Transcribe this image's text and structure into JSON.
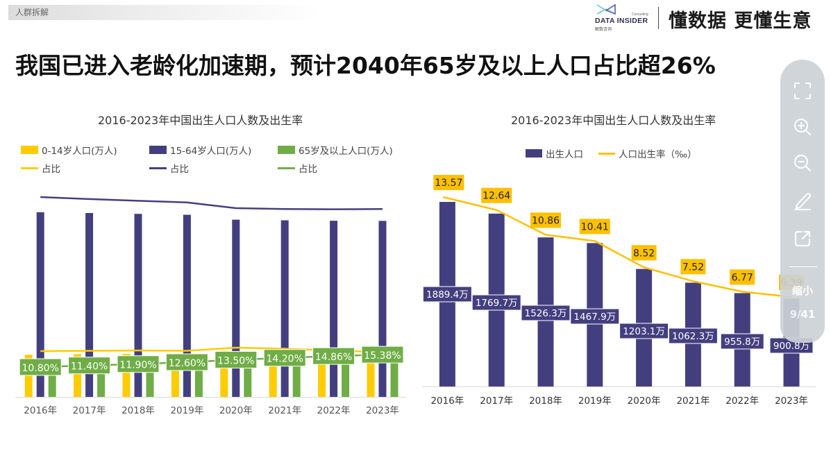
{
  "section_tag": "人群拆解",
  "brand": {
    "logo_name": "DATA INSIDER",
    "logo_sub": "解数咨询",
    "logo_consulting": "Consulting",
    "slogan": "懂数据 更懂生意"
  },
  "page_title": "我国已进入老龄化加速期，预计2040年65岁及以上人口占比超26%",
  "colors": {
    "yellow": "#FFCC00",
    "purple": "#433F7F",
    "green": "#70AD47",
    "label_yellow_bg": "#FFC000"
  },
  "toolbar": {
    "items": [
      {
        "name": "fullscreen",
        "icon": "fullscreen-icon"
      },
      {
        "name": "zoom-in",
        "icon": "zoom-in-icon"
      },
      {
        "name": "zoom-out",
        "icon": "zoom-out-icon"
      },
      {
        "name": "annotate",
        "icon": "pencil-icon"
      },
      {
        "name": "share",
        "icon": "share-icon"
      }
    ],
    "shrink_label": "缩小",
    "page_indicator": "9/41"
  },
  "chart_data": [
    {
      "type": "bar",
      "title": "2016-2023年中国出生人口人数及出生率",
      "categories": [
        "2016年",
        "2017年",
        "2018年",
        "2019年",
        "2020年",
        "2021年",
        "2022年",
        "2023年"
      ],
      "legend": [
        {
          "label": "0-14岁人口(万人)",
          "kind": "bar",
          "color": "#FFCC00"
        },
        {
          "label": "15-64岁人口(万人)",
          "kind": "bar",
          "color": "#433F7F"
        },
        {
          "label": "65岁及以上人口(万人)",
          "kind": "bar",
          "color": "#70AD47"
        },
        {
          "label": "占比",
          "kind": "line",
          "color": "#FFCC00"
        },
        {
          "label": "占比",
          "kind": "line",
          "color": "#433F7F"
        },
        {
          "label": "占比",
          "kind": "line",
          "color": "#70AD47"
        }
      ],
      "series": [
        {
          "name": "0-14岁人口(万人)",
          "kind": "bar",
          "values": [
            23008,
            23348,
            23523,
            23492,
            25277,
            24678,
            23908,
            23063
          ]
        },
        {
          "name": "15-64岁人口(万人)",
          "kind": "bar",
          "values": [
            100943,
            100528,
            100065,
            99552,
            96871,
            96526,
            96289,
            96228
          ]
        },
        {
          "name": "65岁及以上人口(万人)",
          "kind": "bar",
          "values": [
            15003,
            15831,
            16658,
            17603,
            19064,
            20056,
            20978,
            21676
          ]
        },
        {
          "name": "0-14岁占比",
          "kind": "line",
          "values": [
            16.7,
            16.8,
            16.9,
            16.8,
            17.9,
            17.5,
            16.9,
            16.3
          ]
        },
        {
          "name": "15-64岁占比",
          "kind": "line",
          "values": [
            72.5,
            71.8,
            71.2,
            70.6,
            68.6,
            68.3,
            68.2,
            68.3
          ]
        },
        {
          "name": "65岁及以上占比",
          "kind": "line",
          "values": [
            10.8,
            11.4,
            11.9,
            12.6,
            13.5,
            14.2,
            14.86,
            15.38
          ],
          "data_labels": [
            "10.80%",
            "11.40%",
            "11.90%",
            "12.60%",
            "13.50%",
            "14.20%",
            "14.86%",
            "15.38%"
          ]
        }
      ],
      "xlabel": "",
      "ylabel": "",
      "grid": false,
      "legend_position": "top"
    },
    {
      "type": "bar",
      "title": "2016-2023年中国出生人口人数及出生率",
      "categories": [
        "2016年",
        "2017年",
        "2018年",
        "2019年",
        "2020年",
        "2021年",
        "2022年",
        "2023年"
      ],
      "legend": [
        {
          "label": "出生人口",
          "kind": "bar",
          "color": "#433F7F"
        },
        {
          "label": "人口出生率（‰）",
          "kind": "line",
          "color": "#FFC000"
        }
      ],
      "series": [
        {
          "name": "出生人口",
          "kind": "bar",
          "unit": "万",
          "values": [
            1889.4,
            1769.7,
            1526.3,
            1467.9,
            1203.1,
            1062.3,
            955.8,
            900.8
          ],
          "data_labels": [
            "1889.4万",
            "1769.7万",
            "1526.3万",
            "1467.9万",
            "1203.1万",
            "1062.3万",
            "955.8万",
            "900.8万"
          ]
        },
        {
          "name": "人口出生率（‰）",
          "kind": "line",
          "values": [
            13.57,
            12.64,
            10.86,
            10.41,
            8.52,
            7.52,
            6.77,
            6.39
          ],
          "data_labels": [
            "13.57",
            "12.64",
            "10.86",
            "10.41",
            "8.52",
            "7.52",
            "6.77",
            "6.39"
          ]
        }
      ],
      "xlabel": "",
      "ylabel": "",
      "ylim_bar": [
        0,
        1889.4
      ],
      "grid": false,
      "legend_position": "top"
    }
  ]
}
